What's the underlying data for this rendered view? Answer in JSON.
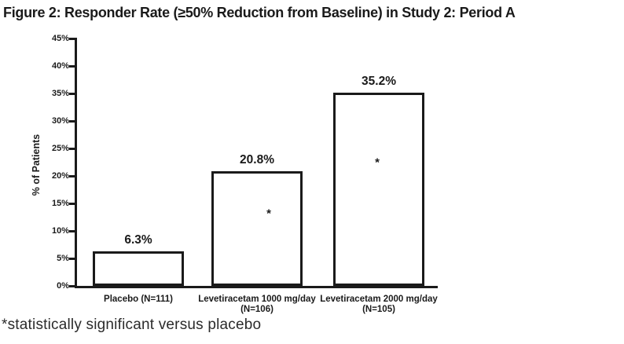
{
  "chart_data": {
    "type": "bar",
    "title": "Figure 2: Responder Rate (≥50% Reduction from Baseline) in Study 2: Period A",
    "footnote": "*statistically significant versus placebo",
    "xlabel": "",
    "ylabel": "% of Patients",
    "ylim": [
      0,
      45
    ],
    "ytick_step": 5,
    "grid": false,
    "legend": "none",
    "bar_fill": "#ffffff",
    "bar_border_color": "#1a1a1a",
    "text_color": "#1a1a1a",
    "significance_marker": "*",
    "yticks": [
      {
        "value": 0,
        "label": "0%"
      },
      {
        "value": 5,
        "label": "5%"
      },
      {
        "value": 10,
        "label": "10%"
      },
      {
        "value": 15,
        "label": "15%"
      },
      {
        "value": 20,
        "label": "20%"
      },
      {
        "value": 25,
        "label": "25%"
      },
      {
        "value": 30,
        "label": "30%"
      },
      {
        "value": 35,
        "label": "35%"
      },
      {
        "value": 40,
        "label": "40%"
      },
      {
        "value": 45,
        "label": "45%"
      }
    ],
    "categories": [
      "Placebo (N=111)",
      "Levetiracetam 1000 mg/day (N=106)",
      "Levetiracetam 2000 mg/day (N=105)"
    ],
    "bars": [
      {
        "category_line1": "Placebo (N=111)",
        "category_line2": "",
        "value": 6.3,
        "value_label": "6.3%",
        "statistically_significant": false
      },
      {
        "category_line1": "Levetiracetam 1000 mg/day",
        "category_line2": "(N=106)",
        "value": 20.8,
        "value_label": "20.8%",
        "statistically_significant": true
      },
      {
        "category_line1": "Levetiracetam 2000 mg/day",
        "category_line2": "(N=105)",
        "value": 35.2,
        "value_label": "35.2%",
        "statistically_significant": true
      }
    ]
  }
}
